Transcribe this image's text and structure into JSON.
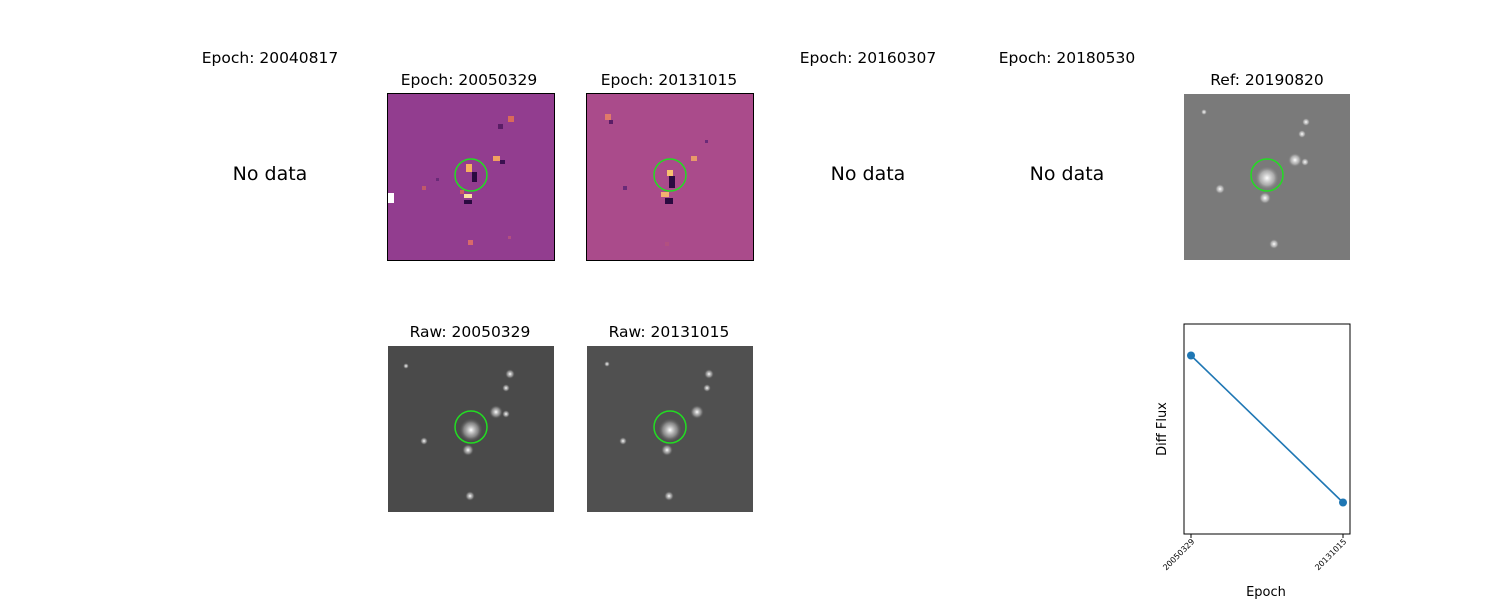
{
  "epoch_titles": [
    "Epoch: 20040817",
    "Epoch: 20050329",
    "Epoch: 20131015",
    "Epoch: 20160307",
    "Epoch: 20180530",
    "Ref: 20190820"
  ],
  "no_data_text": "No data",
  "raw_titles": [
    "Raw: 20050329",
    "Raw: 20131015"
  ],
  "colors": {
    "diff_background": "#8e3b8e",
    "raw_background": "#4a4a4a",
    "ref_background": "#7a7a7a",
    "target_circle": "#22dd22",
    "series_line": "#1f77b4"
  },
  "chart_data": {
    "type": "line",
    "x": [
      "20050329",
      "20131015"
    ],
    "y": [
      0.85,
      0.15
    ],
    "xlabel": "Epoch",
    "ylabel": "Diff Flux",
    "ylim": [
      0,
      1
    ],
    "y_ticks_shown": false,
    "grid": false,
    "legend": "none"
  }
}
